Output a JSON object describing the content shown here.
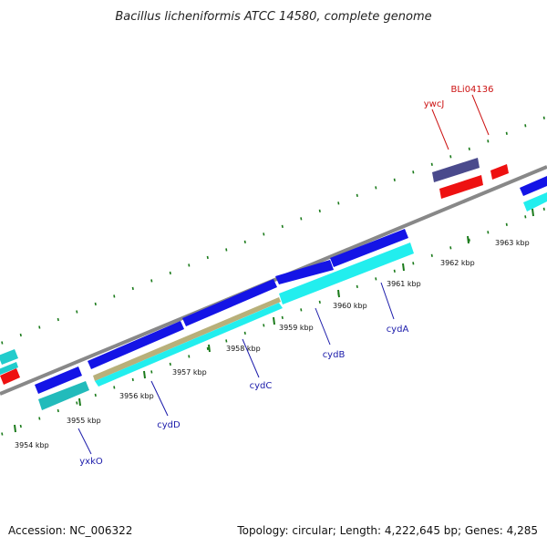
{
  "title": "Bacillus licheniformis ATCC 14580, complete genome",
  "footer": {
    "accession": "Accession: NC_006322",
    "summary": "Topology: circular; Length: 4,222,645 bp; Genes: 4,285"
  },
  "tick_labels": [
    "3954 kbp",
    "3955 kbp",
    "3956 kbp",
    "3957 kbp",
    "3958 kbp",
    "3959 kbp",
    "3960 kbp",
    "3961 kbp",
    "3962 kbp",
    "3963 kbp"
  ],
  "gene_labels_inner": [
    "yxkO",
    "cydD",
    "cydC",
    "cydB",
    "cydA"
  ],
  "gene_labels_outer": [
    "ywcJ",
    "BLi04136"
  ],
  "colors": {
    "backbone": "#888888",
    "tick_minor": "#1a7a1a",
    "cds_forward": "#1414e6",
    "cds_reverse": "#ee1111",
    "cds_inner": "#22eeee",
    "cds_dark": "#4a4a8c",
    "rna_feature": "#b8b07a",
    "label_inner": "#1a1aaa",
    "label_outer": "#cc1111"
  }
}
